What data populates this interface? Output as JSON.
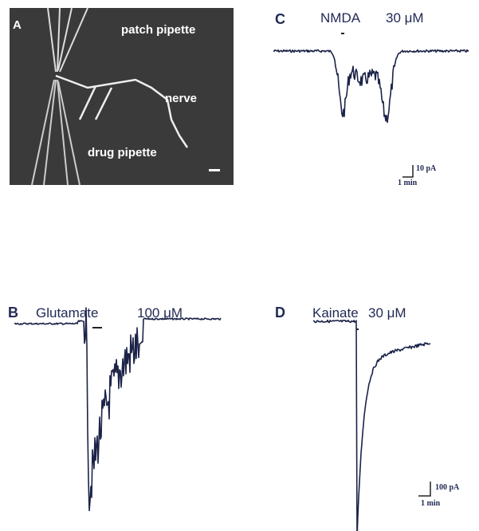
{
  "panel_a": {
    "label": "A",
    "patch": "patch pipette",
    "nerve": "nerve",
    "drug": "drug pipette"
  },
  "panel_b": {
    "label": "B",
    "drug": "Glutamate",
    "conc": "100 μM"
  },
  "panel_c": {
    "label": "C",
    "drug": "NMDA",
    "conc": "30 μM",
    "scale_y": "10 pA",
    "scale_x": "1 min"
  },
  "panel_d": {
    "label": "D",
    "drug": "Kainate",
    "conc": "30 μM",
    "scale_y": "100 pA",
    "scale_x": "1 min"
  }
}
